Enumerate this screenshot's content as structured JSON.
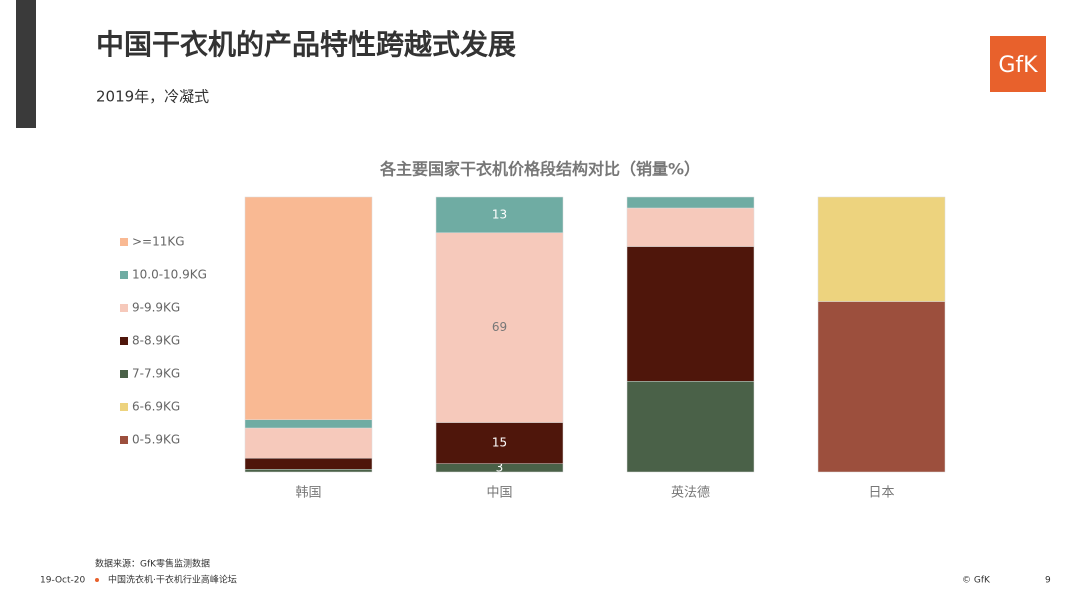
{
  "header": {
    "title": "中国干衣机的产品特性跨越式发展",
    "subtitle": "2019年，冷凝式",
    "logo": "GfK"
  },
  "chart_data": {
    "type": "stacked_bar",
    "title": "各主要国家干衣机价格段结构对比（销量%）",
    "categories": [
      "韩国",
      "中国",
      "英法德",
      "日本"
    ],
    "ylim": [
      0,
      100
    ],
    "show_labels": [
      false,
      true,
      false,
      false
    ],
    "series": [
      {
        "name": ">=11KG",
        "color": "#F9B993",
        "values": [
          81,
          0,
          0,
          0
        ]
      },
      {
        "name": "10.0-10.9KG",
        "color": "#6FACA3",
        "values": [
          3,
          13,
          4,
          0
        ]
      },
      {
        "name": "9-9.9KG",
        "color": "#F6C9BB",
        "values": [
          11,
          69,
          14,
          0
        ]
      },
      {
        "name": "8-8.9KG",
        "color": "#4F160B",
        "values": [
          4,
          15,
          49,
          0
        ]
      },
      {
        "name": "7-7.9KG",
        "color": "#4A6148",
        "values": [
          1,
          3,
          33,
          0
        ]
      },
      {
        "name": "6-6.9KG",
        "color": "#EDD37E",
        "values": [
          0,
          0,
          0,
          38
        ]
      },
      {
        "name": "0-5.9KG",
        "color": "#9C4F3D",
        "values": [
          0,
          0,
          0,
          62
        ]
      }
    ]
  },
  "footer": {
    "source": "数据来源：GfK零售监测数据",
    "date": "19-Oct-20",
    "event": "中国洗衣机·干衣机行业高峰论坛",
    "copyright": "© GfK",
    "page": "9"
  }
}
